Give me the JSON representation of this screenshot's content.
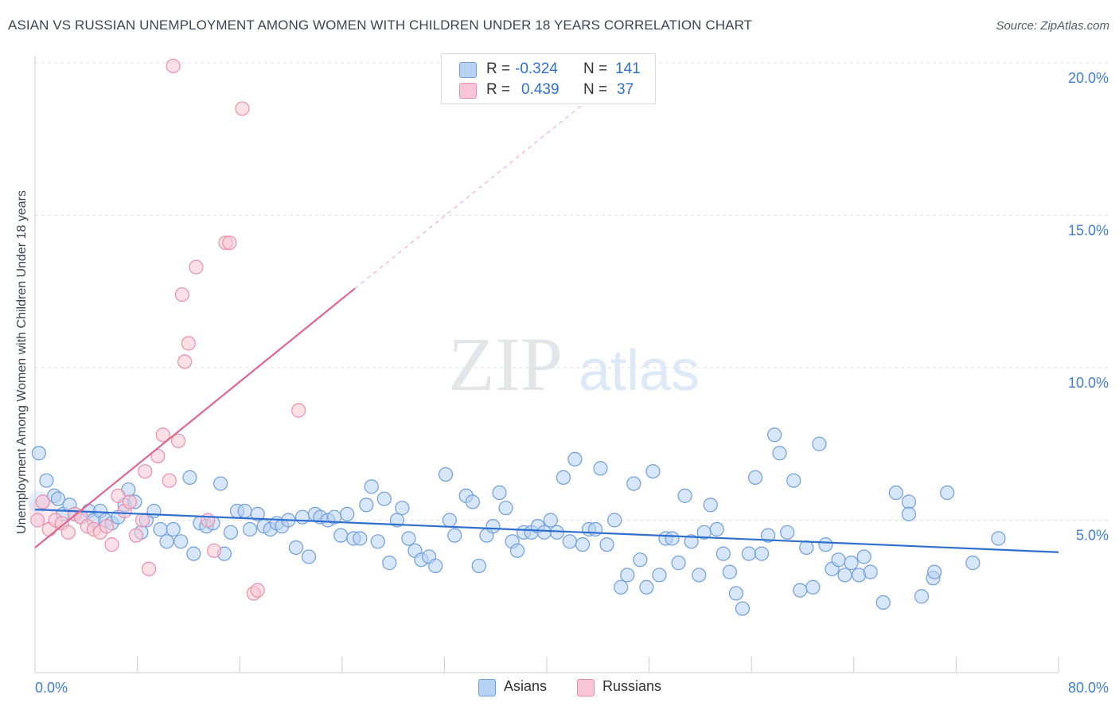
{
  "header": {
    "title": "ASIAN VS RUSSIAN UNEMPLOYMENT AMONG WOMEN WITH CHILDREN UNDER 18 YEARS CORRELATION CHART",
    "source": "Source: ZipAtlas.com"
  },
  "watermark": {
    "zip": "ZIP",
    "atlas": "atlas"
  },
  "legend_top": {
    "rows": [
      {
        "r_label": "R =",
        "r_value": "-0.324",
        "n_label": "N =",
        "n_value": "141"
      },
      {
        "r_label": "R =",
        "r_value": "0.439",
        "n_label": "N =",
        "n_value": "37"
      }
    ]
  },
  "legend_bottom": {
    "asians": "Asians",
    "russians": "Russians"
  },
  "colors": {
    "asians_fill": "#b7d2f2",
    "asians_stroke": "#6f9fdc",
    "asians_line": "#2f6fd0",
    "russians_fill": "#f8c6d6",
    "russians_stroke": "#ea8fab",
    "russians_line": "#e0668e",
    "tick_label": "#3f7fcf",
    "grid": "#dde0e6"
  },
  "chart_data": {
    "type": "scatter",
    "title": "ASIAN VS RUSSIAN UNEMPLOYMENT AMONG WOMEN WITH CHILDREN UNDER 18 YEARS CORRELATION CHART",
    "xlabel": "",
    "ylabel": "Unemployment Among Women with Children Under 18 years",
    "xlim": [
      0,
      80
    ],
    "ylim": [
      0,
      20.5
    ],
    "x_tick_labels": [
      "0.0%",
      "80.0%"
    ],
    "y_ticks": [
      5,
      10,
      15,
      20
    ],
    "y_tick_labels": [
      "5.0%",
      "10.0%",
      "15.0%",
      "20.0%"
    ],
    "grid": true,
    "legend_position": "top-center",
    "series": [
      {
        "name": "Asians",
        "points": [
          [
            0.3,
            7.2
          ],
          [
            0.9,
            6.3
          ],
          [
            1.5,
            5.8
          ],
          [
            1.8,
            5.7
          ],
          [
            2.2,
            5.2
          ],
          [
            2.7,
            5.5
          ],
          [
            3.1,
            5.2
          ],
          [
            3.6,
            5.1
          ],
          [
            4.2,
            5.3
          ],
          [
            4.6,
            5.0
          ],
          [
            5.1,
            5.3
          ],
          [
            5.5,
            5.0
          ],
          [
            6.0,
            4.9
          ],
          [
            6.5,
            5.1
          ],
          [
            7.0,
            5.5
          ],
          [
            7.3,
            6.0
          ],
          [
            7.8,
            5.6
          ],
          [
            8.3,
            4.6
          ],
          [
            8.7,
            5.0
          ],
          [
            9.3,
            5.3
          ],
          [
            9.8,
            4.7
          ],
          [
            10.3,
            4.3
          ],
          [
            10.8,
            4.7
          ],
          [
            11.4,
            4.3
          ],
          [
            12.1,
            6.4
          ],
          [
            12.4,
            3.9
          ],
          [
            12.9,
            4.9
          ],
          [
            13.4,
            4.8
          ],
          [
            13.9,
            4.9
          ],
          [
            14.5,
            6.2
          ],
          [
            14.8,
            3.9
          ],
          [
            15.3,
            4.6
          ],
          [
            15.8,
            5.3
          ],
          [
            16.4,
            5.3
          ],
          [
            16.8,
            4.7
          ],
          [
            17.4,
            5.2
          ],
          [
            17.9,
            4.8
          ],
          [
            18.4,
            4.7
          ],
          [
            18.9,
            4.9
          ],
          [
            19.3,
            4.8
          ],
          [
            19.8,
            5.0
          ],
          [
            20.4,
            4.1
          ],
          [
            20.9,
            5.1
          ],
          [
            21.4,
            3.8
          ],
          [
            21.9,
            5.2
          ],
          [
            22.3,
            5.1
          ],
          [
            22.9,
            5.0
          ],
          [
            23.4,
            5.1
          ],
          [
            23.9,
            4.5
          ],
          [
            24.4,
            5.2
          ],
          [
            24.9,
            4.4
          ],
          [
            25.4,
            4.4
          ],
          [
            25.9,
            5.5
          ],
          [
            26.3,
            6.1
          ],
          [
            26.8,
            4.3
          ],
          [
            27.3,
            5.7
          ],
          [
            27.7,
            3.6
          ],
          [
            28.3,
            5.0
          ],
          [
            28.7,
            5.4
          ],
          [
            29.2,
            4.4
          ],
          [
            29.7,
            4.0
          ],
          [
            30.2,
            3.7
          ],
          [
            30.8,
            3.8
          ],
          [
            31.3,
            3.5
          ],
          [
            32.1,
            6.5
          ],
          [
            32.4,
            5.0
          ],
          [
            32.8,
            4.5
          ],
          [
            33.7,
            5.8
          ],
          [
            34.2,
            5.6
          ],
          [
            34.7,
            3.5
          ],
          [
            35.3,
            4.5
          ],
          [
            35.8,
            4.8
          ],
          [
            36.3,
            5.9
          ],
          [
            36.8,
            5.4
          ],
          [
            37.3,
            4.3
          ],
          [
            37.7,
            4.0
          ],
          [
            38.2,
            4.6
          ],
          [
            38.8,
            4.6
          ],
          [
            39.3,
            4.8
          ],
          [
            39.8,
            4.6
          ],
          [
            40.3,
            5.0
          ],
          [
            40.8,
            4.6
          ],
          [
            41.3,
            6.4
          ],
          [
            41.8,
            4.3
          ],
          [
            42.2,
            7.0
          ],
          [
            42.8,
            4.2
          ],
          [
            43.3,
            4.7
          ],
          [
            43.8,
            4.7
          ],
          [
            44.2,
            6.7
          ],
          [
            44.7,
            4.2
          ],
          [
            45.3,
            5.0
          ],
          [
            45.8,
            2.8
          ],
          [
            46.3,
            3.2
          ],
          [
            46.8,
            6.2
          ],
          [
            47.3,
            3.7
          ],
          [
            47.8,
            2.8
          ],
          [
            48.3,
            6.6
          ],
          [
            48.8,
            3.2
          ],
          [
            49.3,
            4.4
          ],
          [
            49.8,
            4.4
          ],
          [
            50.3,
            3.6
          ],
          [
            50.8,
            5.8
          ],
          [
            51.3,
            4.3
          ],
          [
            51.9,
            3.2
          ],
          [
            52.3,
            4.6
          ],
          [
            52.8,
            5.5
          ],
          [
            53.3,
            4.7
          ],
          [
            53.8,
            3.9
          ],
          [
            54.3,
            3.3
          ],
          [
            54.8,
            2.6
          ],
          [
            55.3,
            2.1
          ],
          [
            55.8,
            3.9
          ],
          [
            56.3,
            6.4
          ],
          [
            56.8,
            3.9
          ],
          [
            57.3,
            4.5
          ],
          [
            57.8,
            7.8
          ],
          [
            58.2,
            7.2
          ],
          [
            58.8,
            4.6
          ],
          [
            59.3,
            6.3
          ],
          [
            59.8,
            2.7
          ],
          [
            60.3,
            4.1
          ],
          [
            60.8,
            2.8
          ],
          [
            61.3,
            7.5
          ],
          [
            61.8,
            4.2
          ],
          [
            62.3,
            3.4
          ],
          [
            62.8,
            3.7
          ],
          [
            63.3,
            3.2
          ],
          [
            63.8,
            3.6
          ],
          [
            64.4,
            3.2
          ],
          [
            64.8,
            3.8
          ],
          [
            65.3,
            3.3
          ],
          [
            66.3,
            2.3
          ],
          [
            67.3,
            5.9
          ],
          [
            68.3,
            5.6
          ],
          [
            68.3,
            5.2
          ],
          [
            69.3,
            2.5
          ],
          [
            70.2,
            3.1
          ],
          [
            70.3,
            3.3
          ],
          [
            71.3,
            5.9
          ],
          [
            73.3,
            3.6
          ],
          [
            75.3,
            4.4
          ]
        ],
        "trend": {
          "x": [
            0,
            80
          ],
          "y": [
            5.35,
            3.95
          ]
        }
      },
      {
        "name": "Russians",
        "points": [
          [
            0.2,
            5.0
          ],
          [
            0.6,
            5.6
          ],
          [
            1.1,
            4.7
          ],
          [
            1.6,
            5.0
          ],
          [
            2.1,
            4.9
          ],
          [
            2.6,
            4.6
          ],
          [
            3.1,
            5.2
          ],
          [
            3.6,
            5.1
          ],
          [
            4.1,
            4.8
          ],
          [
            4.6,
            4.7
          ],
          [
            5.1,
            4.6
          ],
          [
            5.6,
            4.8
          ],
          [
            6.0,
            4.2
          ],
          [
            6.5,
            5.8
          ],
          [
            7.0,
            5.3
          ],
          [
            7.4,
            5.6
          ],
          [
            7.9,
            4.5
          ],
          [
            8.4,
            5.0
          ],
          [
            8.6,
            6.6
          ],
          [
            8.9,
            3.4
          ],
          [
            9.6,
            7.1
          ],
          [
            10.0,
            7.8
          ],
          [
            10.5,
            6.3
          ],
          [
            11.2,
            7.6
          ],
          [
            11.5,
            12.4
          ],
          [
            11.7,
            10.2
          ],
          [
            12.0,
            10.8
          ],
          [
            12.6,
            13.3
          ],
          [
            13.5,
            5.0
          ],
          [
            14.0,
            4.0
          ],
          [
            14.9,
            14.1
          ],
          [
            15.2,
            14.1
          ],
          [
            16.2,
            18.5
          ],
          [
            17.1,
            2.6
          ],
          [
            17.4,
            2.7
          ],
          [
            20.6,
            8.6
          ],
          [
            10.8,
            19.9
          ]
        ],
        "trend": {
          "x": [
            0,
            25.0
          ],
          "y": [
            4.1,
            12.6
          ]
        },
        "trend_extension": {
          "x": [
            25.0,
            43.0
          ],
          "y": [
            12.6,
            18.7
          ]
        }
      }
    ]
  }
}
